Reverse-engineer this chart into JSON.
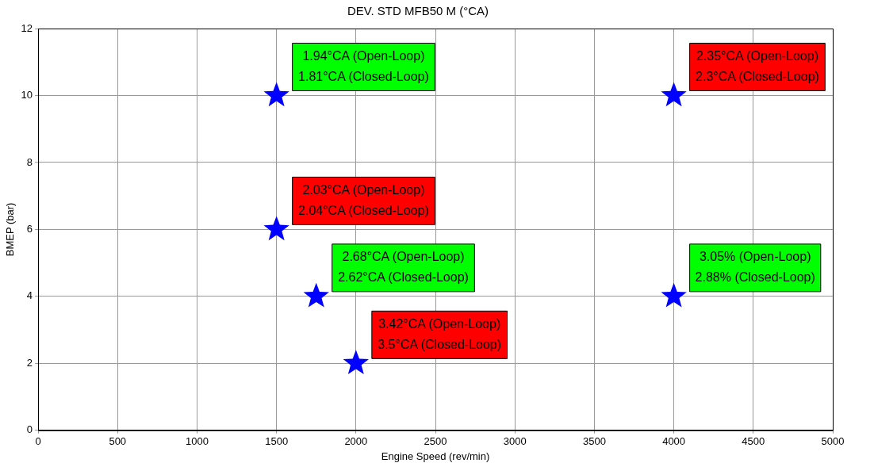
{
  "chart_data": {
    "type": "scatter",
    "title": "DEV. STD MFB50 M (°CA)",
    "xlabel": "Engine Speed (rev/min)",
    "ylabel": "BMEP (bar)",
    "x": [
      1500,
      4000,
      1500,
      1750,
      4000,
      2000
    ],
    "series": [
      {
        "color": "#0000ff",
        "values": [
          10,
          10,
          6,
          4,
          4,
          2
        ]
      }
    ],
    "marker": "star",
    "grid": true,
    "legend": false,
    "xlim": [
      0,
      5000
    ],
    "xticks": [
      0,
      500,
      1000,
      1500,
      2000,
      2500,
      3000,
      3500,
      4000,
      4500,
      5000
    ],
    "ylim": [
      0,
      12
    ],
    "yticks": [
      0,
      2,
      4,
      6,
      8,
      10,
      12
    ],
    "annotations": [
      {
        "text": "1.94°CA (Open-Loop)\n1.81°CA (Closed-Loop)",
        "x": 1500,
        "y": 10
      },
      {
        "text": "2.35°CA (Open-Loop)\n2.3°CA (Closed-Loop)",
        "x": 4000,
        "y": 10
      },
      {
        "text": "2.03°CA (Open-Loop)\n2.04°CA (Closed-Loop)",
        "x": 1500,
        "y": 6
      },
      {
        "text": "2.68°CA (Open-Loop)\n2.62°CA (Closed-Loop)",
        "x": 1750,
        "y": 4
      },
      {
        "text": "3.05% (Open-Loop)\n2.88% (Closed-Loop)",
        "x": 4000,
        "y": 4
      },
      {
        "text": "3.42°CA (Open-Loop)\n3.5°CA (Closed-Loop)",
        "x": 2000,
        "y": 2
      }
    ]
  }
}
